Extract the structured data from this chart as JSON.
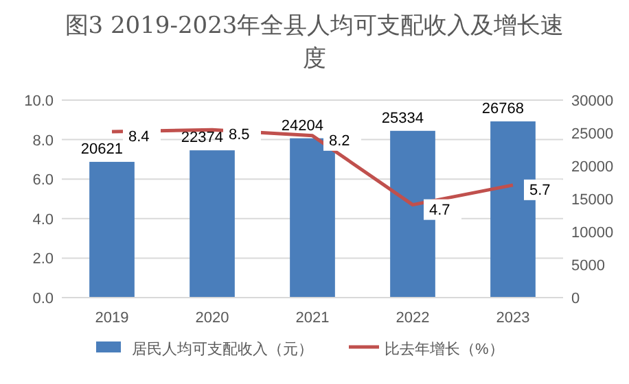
{
  "chart_data": {
    "type": "bar",
    "title": "图3  2019-2023年全县人均可支配收入及增长速度",
    "categories": [
      "2019",
      "2020",
      "2021",
      "2022",
      "2023"
    ],
    "series": [
      {
        "name": "居民人均可支配收入（元）",
        "axis": "y2",
        "color": "#4a7ebb",
        "values": [
          20621,
          22374,
          24204,
          25334,
          26768
        ]
      },
      {
        "name": "比去年增长（%）",
        "type": "line",
        "axis": "y",
        "color": "#c0504d",
        "values": [
          8.4,
          8.5,
          8.2,
          4.7,
          5.7
        ]
      }
    ],
    "ylim": [
      0,
      10
    ],
    "yticks": [
      {
        "value": 0,
        "label": "0.0"
      },
      {
        "value": 2,
        "label": "2.0"
      },
      {
        "value": 4,
        "label": "4.0"
      },
      {
        "value": 6,
        "label": "6.0"
      },
      {
        "value": 8,
        "label": "8.0"
      },
      {
        "value": 10,
        "label": "10.0"
      }
    ],
    "y2lim": [
      0,
      30000
    ],
    "y2ticks": [
      0,
      5000,
      10000,
      15000,
      20000,
      25000,
      30000
    ],
    "grid": "y",
    "legend": "bottom",
    "data_labels": true,
    "marker": "none",
    "line_style": "solid"
  }
}
